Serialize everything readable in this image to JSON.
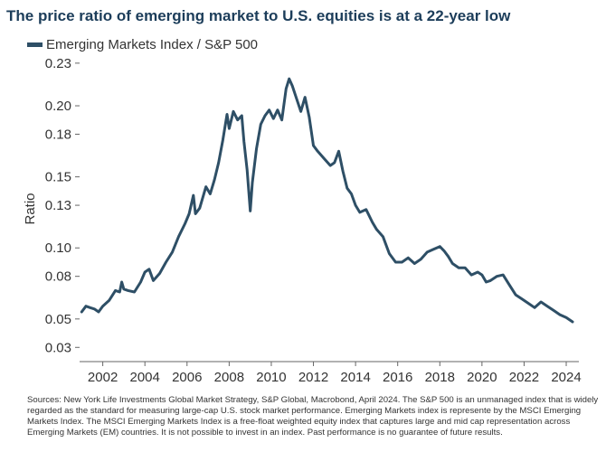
{
  "chart_data": {
    "type": "line",
    "title": "The price ratio of emerging market to U.S. equities is at a 22-year low",
    "xlabel": "",
    "ylabel": "Ratio",
    "xlim": [
      2000.9,
      2024.6
    ],
    "ylim": [
      0.02,
      0.235
    ],
    "yticks": [
      0.23,
      0.2,
      0.18,
      0.15,
      0.13,
      0.1,
      0.08,
      0.05,
      0.03
    ],
    "ytick_labels": [
      "0.23",
      "0.20",
      "0.18",
      "0.15",
      "0.13",
      "0.10",
      "0.08",
      "0.05",
      "0.03"
    ],
    "xticks": [
      2002,
      2004,
      2006,
      2008,
      2010,
      2012,
      2014,
      2016,
      2018,
      2020,
      2022,
      2024
    ],
    "xtick_labels": [
      "2002",
      "2004",
      "2006",
      "2008",
      "2010",
      "2012",
      "2014",
      "2016",
      "2018",
      "2020",
      "2022",
      "2024"
    ],
    "grid": false,
    "legend_position": "top-left",
    "series": [
      {
        "name": "Emerging Markets Index / S&P 500",
        "color": "#2e4f66",
        "points": [
          [
            2001.0,
            0.055
          ],
          [
            2001.2,
            0.059
          ],
          [
            2001.4,
            0.058
          ],
          [
            2001.6,
            0.057
          ],
          [
            2001.8,
            0.055
          ],
          [
            2002.0,
            0.059
          ],
          [
            2002.3,
            0.063
          ],
          [
            2002.6,
            0.07
          ],
          [
            2002.8,
            0.069
          ],
          [
            2002.9,
            0.076
          ],
          [
            2003.0,
            0.071
          ],
          [
            2003.2,
            0.07
          ],
          [
            2003.5,
            0.069
          ],
          [
            2003.8,
            0.076
          ],
          [
            2004.0,
            0.083
          ],
          [
            2004.2,
            0.085
          ],
          [
            2004.4,
            0.077
          ],
          [
            2004.7,
            0.082
          ],
          [
            2005.0,
            0.09
          ],
          [
            2005.3,
            0.097
          ],
          [
            2005.6,
            0.108
          ],
          [
            2005.9,
            0.117
          ],
          [
            2006.1,
            0.124
          ],
          [
            2006.3,
            0.137
          ],
          [
            2006.4,
            0.124
          ],
          [
            2006.6,
            0.128
          ],
          [
            2006.9,
            0.143
          ],
          [
            2007.1,
            0.138
          ],
          [
            2007.3,
            0.148
          ],
          [
            2007.5,
            0.16
          ],
          [
            2007.7,
            0.176
          ],
          [
            2007.9,
            0.194
          ],
          [
            2008.0,
            0.184
          ],
          [
            2008.2,
            0.196
          ],
          [
            2008.4,
            0.19
          ],
          [
            2008.6,
            0.193
          ],
          [
            2008.7,
            0.175
          ],
          [
            2008.85,
            0.155
          ],
          [
            2009.0,
            0.126
          ],
          [
            2009.1,
            0.146
          ],
          [
            2009.3,
            0.17
          ],
          [
            2009.5,
            0.187
          ],
          [
            2009.7,
            0.193
          ],
          [
            2009.9,
            0.197
          ],
          [
            2010.1,
            0.191
          ],
          [
            2010.3,
            0.197
          ],
          [
            2010.5,
            0.19
          ],
          [
            2010.7,
            0.212
          ],
          [
            2010.85,
            0.219
          ],
          [
            2011.0,
            0.214
          ],
          [
            2011.2,
            0.205
          ],
          [
            2011.4,
            0.196
          ],
          [
            2011.6,
            0.206
          ],
          [
            2011.8,
            0.192
          ],
          [
            2012.0,
            0.172
          ],
          [
            2012.2,
            0.168
          ],
          [
            2012.5,
            0.163
          ],
          [
            2012.8,
            0.158
          ],
          [
            2013.0,
            0.16
          ],
          [
            2013.2,
            0.168
          ],
          [
            2013.4,
            0.154
          ],
          [
            2013.6,
            0.142
          ],
          [
            2013.8,
            0.138
          ],
          [
            2014.0,
            0.13
          ],
          [
            2014.2,
            0.125
          ],
          [
            2014.5,
            0.127
          ],
          [
            2014.8,
            0.118
          ],
          [
            2015.0,
            0.113
          ],
          [
            2015.3,
            0.108
          ],
          [
            2015.6,
            0.096
          ],
          [
            2015.9,
            0.09
          ],
          [
            2016.2,
            0.09
          ],
          [
            2016.5,
            0.093
          ],
          [
            2016.8,
            0.089
          ],
          [
            2017.1,
            0.092
          ],
          [
            2017.4,
            0.097
          ],
          [
            2017.7,
            0.099
          ],
          [
            2018.0,
            0.101
          ],
          [
            2018.2,
            0.098
          ],
          [
            2018.4,
            0.094
          ],
          [
            2018.6,
            0.089
          ],
          [
            2018.9,
            0.086
          ],
          [
            2019.2,
            0.086
          ],
          [
            2019.5,
            0.081
          ],
          [
            2019.8,
            0.083
          ],
          [
            2020.0,
            0.081
          ],
          [
            2020.2,
            0.076
          ],
          [
            2020.4,
            0.077
          ],
          [
            2020.7,
            0.08
          ],
          [
            2021.0,
            0.081
          ],
          [
            2021.3,
            0.074
          ],
          [
            2021.6,
            0.067
          ],
          [
            2021.9,
            0.064
          ],
          [
            2022.2,
            0.061
          ],
          [
            2022.5,
            0.058
          ],
          [
            2022.8,
            0.062
          ],
          [
            2023.1,
            0.059
          ],
          [
            2023.4,
            0.056
          ],
          [
            2023.7,
            0.053
          ],
          [
            2024.0,
            0.051
          ],
          [
            2024.3,
            0.048
          ]
        ]
      }
    ]
  },
  "footnote": "Sources: New York Life Investments Global Market Strategy, S&P Global, Macrobond, April 2024. The S&P 500 is an unmanaged index that is widely regarded as the standard for measuring large-cap U.S. stock market performance. Emerging Markets index is represente by the MSCI Emerging Markets Index. The MSCI Emerging Markets Index is a free-float weighted equity index that captures large and mid cap representation across Emerging Markets (EM) countries. It is not possible to invest in an index. Past performance is no guarantee of future results."
}
